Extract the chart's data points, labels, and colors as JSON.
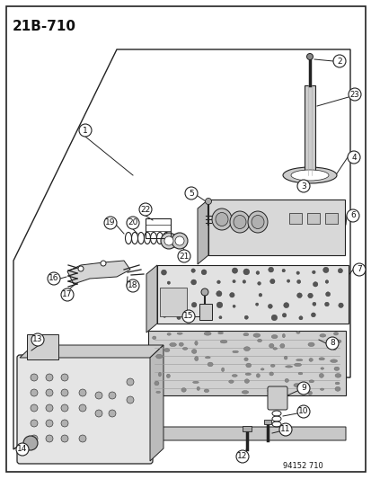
{
  "title": "21B-710",
  "footer": "94152 710",
  "bg_color": "#ffffff",
  "border_color": "#222222",
  "line_color": "#222222",
  "text_color": "#111111",
  "gray_light": "#cccccc",
  "gray_med": "#aaaaaa",
  "gray_dark": "#888888",
  "callout_r": 7
}
